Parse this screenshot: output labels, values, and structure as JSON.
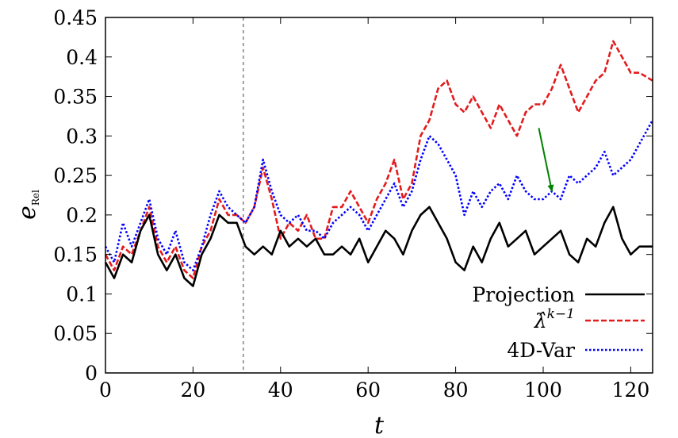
{
  "chart_data": {
    "type": "line",
    "title": "",
    "xlabel": "t",
    "ylabel_main": "e",
    "ylabel_sub": "Rel",
    "xlim": [
      0,
      125
    ],
    "ylim": [
      0,
      0.45
    ],
    "xticks": [
      0,
      20,
      40,
      60,
      80,
      100,
      120
    ],
    "yticks": [
      0,
      0.05,
      0.1,
      0.15,
      0.2,
      0.25,
      0.3,
      0.35,
      0.4,
      0.45
    ],
    "ytick_labels": [
      "0",
      "0.05",
      "0.1",
      "0.15",
      "0.2",
      "0.25",
      "0.3",
      "0.35",
      "0.4",
      "0.45"
    ],
    "grid": false,
    "legend_position": "bottom-right",
    "vertical_marker": {
      "x": 31.5
    },
    "arrow": {
      "from": [
        99,
        0.31
      ],
      "to": [
        102,
        0.23
      ],
      "color": "#008000"
    },
    "series": [
      {
        "name": "Projection",
        "color": "#000000",
        "dash": "solid",
        "x": [
          0,
          2,
          4,
          6,
          8,
          10,
          12,
          14,
          16,
          18,
          20,
          22,
          24,
          26,
          28,
          30,
          32,
          34,
          36,
          38,
          40,
          42,
          44,
          46,
          48,
          50,
          52,
          54,
          56,
          58,
          60,
          62,
          64,
          66,
          68,
          70,
          72,
          74,
          76,
          78,
          80,
          82,
          84,
          86,
          88,
          90,
          92,
          94,
          96,
          98,
          100,
          102,
          104,
          106,
          108,
          110,
          112,
          114,
          116,
          118,
          120,
          122,
          125
        ],
        "y": [
          0.14,
          0.12,
          0.15,
          0.14,
          0.18,
          0.2,
          0.15,
          0.13,
          0.15,
          0.12,
          0.11,
          0.15,
          0.17,
          0.2,
          0.19,
          0.19,
          0.16,
          0.15,
          0.16,
          0.15,
          0.18,
          0.16,
          0.17,
          0.16,
          0.17,
          0.15,
          0.15,
          0.16,
          0.15,
          0.17,
          0.14,
          0.16,
          0.18,
          0.17,
          0.15,
          0.18,
          0.2,
          0.21,
          0.19,
          0.17,
          0.14,
          0.13,
          0.16,
          0.14,
          0.17,
          0.19,
          0.16,
          0.17,
          0.18,
          0.15,
          0.16,
          0.17,
          0.18,
          0.15,
          0.14,
          0.17,
          0.16,
          0.19,
          0.21,
          0.17,
          0.15,
          0.16,
          0.16
        ]
      },
      {
        "name": "λ̂ᵏ⁻¹",
        "label_base": "λ̂",
        "label_sup": "k−1",
        "color": "#e41a1c",
        "dash": "dashed",
        "x": [
          0,
          2,
          4,
          6,
          8,
          10,
          12,
          14,
          16,
          18,
          20,
          22,
          24,
          26,
          28,
          30,
          32,
          34,
          36,
          38,
          40,
          42,
          44,
          46,
          48,
          50,
          52,
          54,
          56,
          58,
          60,
          62,
          64,
          66,
          68,
          70,
          72,
          74,
          76,
          78,
          80,
          82,
          84,
          86,
          88,
          90,
          92,
          94,
          96,
          98,
          100,
          102,
          104,
          106,
          108,
          110,
          112,
          114,
          116,
          118,
          120,
          122,
          125
        ],
        "y": [
          0.15,
          0.13,
          0.16,
          0.15,
          0.18,
          0.21,
          0.16,
          0.14,
          0.16,
          0.13,
          0.12,
          0.16,
          0.18,
          0.22,
          0.2,
          0.2,
          0.19,
          0.21,
          0.26,
          0.22,
          0.17,
          0.19,
          0.18,
          0.2,
          0.17,
          0.17,
          0.21,
          0.21,
          0.23,
          0.21,
          0.19,
          0.22,
          0.24,
          0.27,
          0.22,
          0.24,
          0.3,
          0.32,
          0.36,
          0.37,
          0.34,
          0.33,
          0.35,
          0.33,
          0.31,
          0.34,
          0.32,
          0.3,
          0.33,
          0.34,
          0.34,
          0.36,
          0.39,
          0.36,
          0.33,
          0.35,
          0.37,
          0.38,
          0.42,
          0.4,
          0.38,
          0.38,
          0.37
        ]
      },
      {
        "name": "4D-Var",
        "color": "#0000ff",
        "dash": "dotted",
        "x": [
          0,
          2,
          4,
          6,
          8,
          10,
          12,
          14,
          16,
          18,
          20,
          22,
          24,
          26,
          28,
          30,
          32,
          34,
          36,
          38,
          40,
          42,
          44,
          46,
          48,
          50,
          52,
          54,
          56,
          58,
          60,
          62,
          64,
          66,
          68,
          70,
          72,
          74,
          76,
          78,
          80,
          82,
          84,
          86,
          88,
          90,
          92,
          94,
          96,
          98,
          100,
          102,
          104,
          106,
          108,
          110,
          112,
          114,
          116,
          118,
          120,
          122,
          125
        ],
        "y": [
          0.16,
          0.14,
          0.19,
          0.16,
          0.19,
          0.22,
          0.17,
          0.15,
          0.18,
          0.14,
          0.13,
          0.16,
          0.2,
          0.23,
          0.21,
          0.2,
          0.19,
          0.21,
          0.27,
          0.23,
          0.2,
          0.19,
          0.2,
          0.18,
          0.18,
          0.17,
          0.19,
          0.2,
          0.21,
          0.2,
          0.18,
          0.2,
          0.22,
          0.24,
          0.21,
          0.23,
          0.27,
          0.3,
          0.29,
          0.27,
          0.25,
          0.2,
          0.23,
          0.21,
          0.23,
          0.24,
          0.22,
          0.25,
          0.23,
          0.22,
          0.22,
          0.23,
          0.22,
          0.25,
          0.24,
          0.25,
          0.26,
          0.28,
          0.25,
          0.26,
          0.27,
          0.29,
          0.32
        ]
      }
    ]
  }
}
